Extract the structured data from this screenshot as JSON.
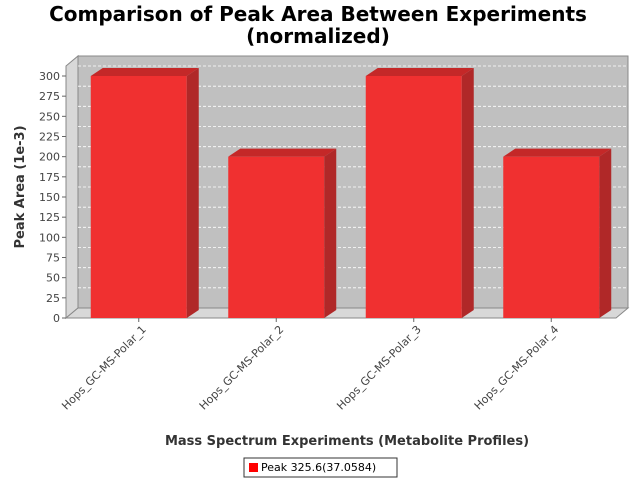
{
  "chart_data": {
    "type": "bar",
    "title_line1": "Comparison of Peak Area Between Experiments",
    "title_line2": "(normalized)",
    "xlabel": "Mass Spectrum Experiments (Metabolite Profiles)",
    "ylabel": "Peak Area (1e-3)",
    "categories": [
      "Hops_GC-MS-Polar_1",
      "Hops_GC-MS-Polar_2",
      "Hops_GC-MS-Polar_3",
      "Hops_GC-MS-Polar_4"
    ],
    "series": [
      {
        "name": "Peak 325.6(37.0584)",
        "values": [
          300,
          200,
          300,
          200
        ]
      }
    ],
    "ylim": [
      0,
      300
    ],
    "yticks": [
      0,
      25,
      50,
      75,
      100,
      125,
      150,
      175,
      200,
      225,
      250,
      275,
      300
    ],
    "grid": true,
    "legend_position": "bottom",
    "colors": {
      "bar_front": "#f03030",
      "bar_top": "#c42828",
      "bar_side": "#b02828",
      "plot_back": "#c0c0c0",
      "plot_wall": "#d8d8d8",
      "grid": "#ffffff"
    }
  }
}
